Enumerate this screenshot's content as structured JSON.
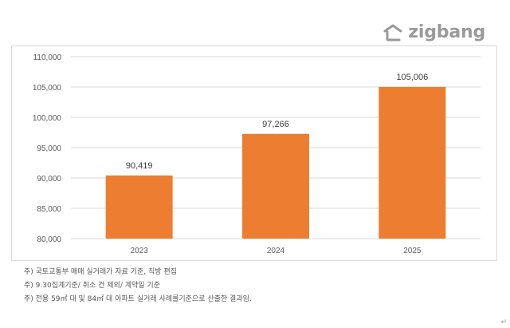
{
  "brand": {
    "name": "zigbang",
    "logo_icon": "zigbang-house-icon",
    "color": "#9a9a9a"
  },
  "chart_data": {
    "type": "bar",
    "categories": [
      "2023",
      "2024",
      "2025"
    ],
    "values": [
      90419,
      97266,
      105006
    ],
    "value_labels": [
      "90,419",
      "97,266",
      "105,006"
    ],
    "ylim": [
      80000,
      110000
    ],
    "yticks": [
      80000,
      85000,
      90000,
      95000,
      100000,
      105000,
      110000
    ],
    "ytick_labels": [
      "80,000",
      "85,000",
      "90,000",
      "95,000",
      "100,000",
      "105,000",
      "110,000"
    ],
    "title": "",
    "xlabel": "",
    "ylabel": "",
    "grid": true,
    "legend": "none",
    "bar_color": "#ed7d31",
    "grid_color": "#d9d9d9"
  },
  "notes": [
    "주) 국토교통부 매매 실거래가 자료 기준, 직방 편집",
    "주) 9.30집계기준/ 취소 건 제외/ 계약일 기준",
    "주) 전용 59㎡ 대 및 84㎡ 대 아파트 실거래 사례를기준으로 산출한 결과임."
  ],
  "paragraph_mark": "↵"
}
